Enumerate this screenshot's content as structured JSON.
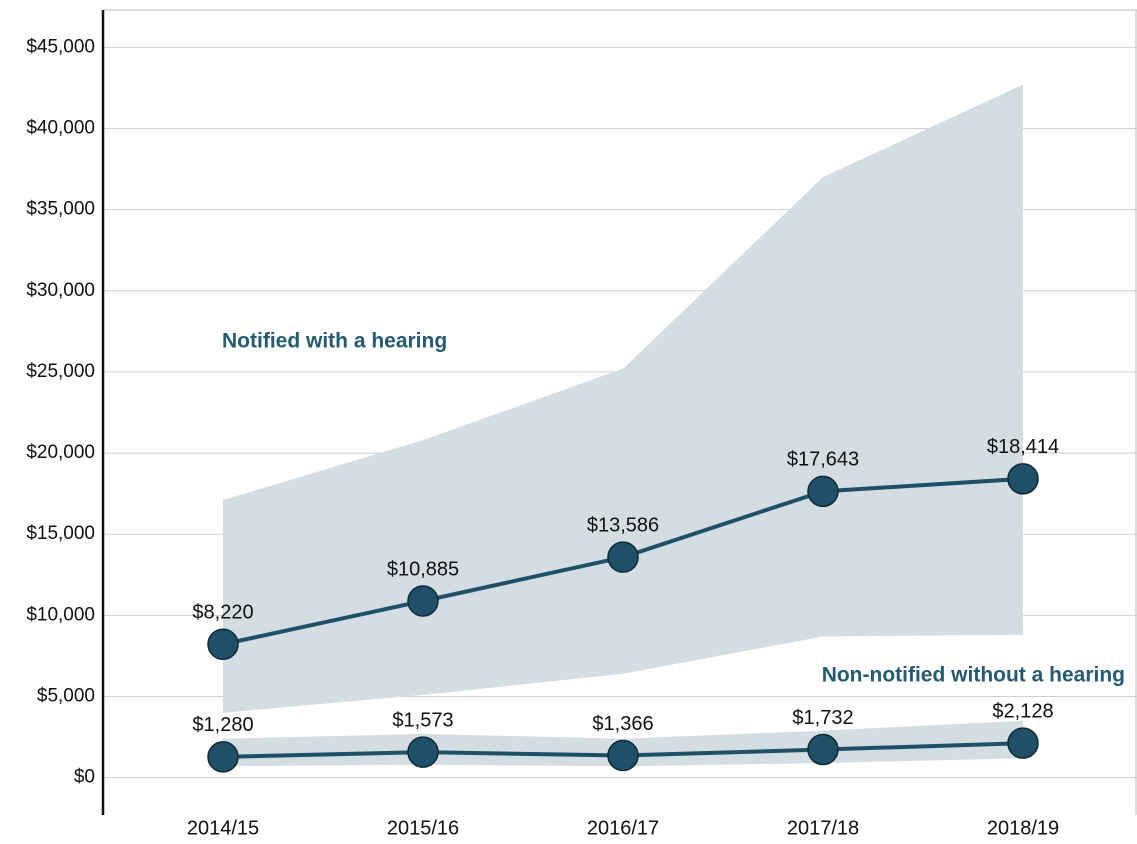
{
  "chart_data": {
    "type": "line",
    "categories": [
      "2014/15",
      "2015/16",
      "2016/17",
      "2017/18",
      "2018/19"
    ],
    "series": [
      {
        "name": "Notified with a hearing",
        "color": "#1f5068",
        "band_color": "#d3dde2",
        "values": [
          8220,
          10885,
          13586,
          17643,
          18414
        ],
        "value_labels": [
          "$8,220",
          "$10,885",
          "$13,586",
          "$17,643",
          "$18,414"
        ],
        "upper": [
          17100,
          20800,
          25200,
          37000,
          42700
        ],
        "lower": [
          4000,
          5100,
          6400,
          8700,
          8800
        ]
      },
      {
        "name": "Non-notified without a hearing",
        "color": "#1f5068",
        "band_color": "#d3dde2",
        "values": [
          1280,
          1573,
          1366,
          1732,
          2128
        ],
        "value_labels": [
          "$1,280",
          "$1,573",
          "$1,366",
          "$1,732",
          "$2,128"
        ],
        "upper": [
          2400,
          2700,
          2400,
          2900,
          3500
        ],
        "lower": [
          700,
          800,
          700,
          900,
          1200
        ]
      }
    ],
    "ylim": [
      -2300,
      47300
    ],
    "yticks": [
      {
        "value": 0,
        "label": "$0"
      },
      {
        "value": 5000,
        "label": "$5,000"
      },
      {
        "value": 10000,
        "label": "$10,000"
      },
      {
        "value": 15000,
        "label": "$15,000"
      },
      {
        "value": 20000,
        "label": "$20,000"
      },
      {
        "value": 25000,
        "label": "$25,000"
      },
      {
        "value": 30000,
        "label": "$30,000"
      },
      {
        "value": 35000,
        "label": "$35,000"
      },
      {
        "value": 40000,
        "label": "$40,000"
      },
      {
        "value": 45000,
        "label": "$45,000"
      }
    ],
    "grid": true
  }
}
